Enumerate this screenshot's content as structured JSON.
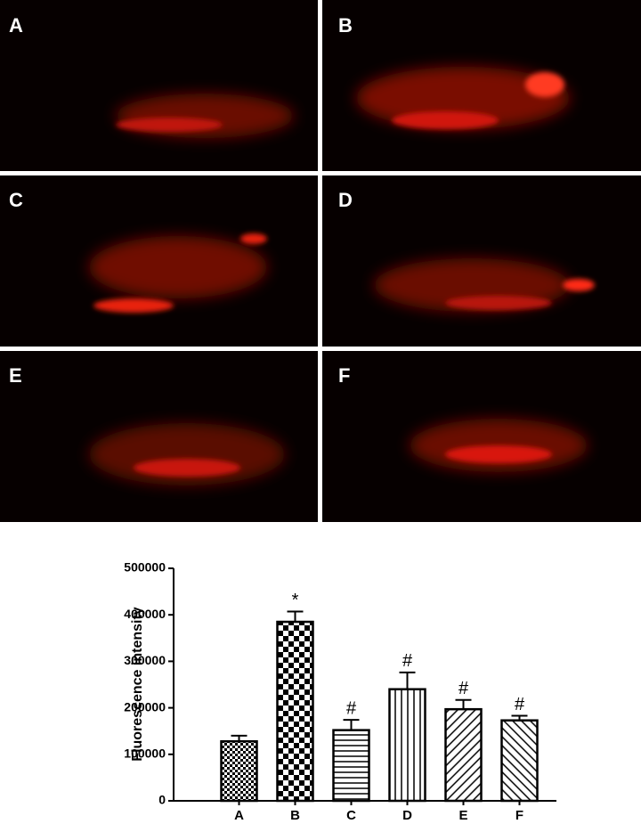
{
  "panels": [
    "A",
    "B",
    "C",
    "D",
    "E",
    "F"
  ],
  "chart_data": {
    "type": "bar",
    "y_label": "Fluorescence intensity",
    "categories": [
      "A",
      "B",
      "C",
      "D",
      "E",
      "F"
    ],
    "values": [
      128000,
      385000,
      152000,
      240000,
      197000,
      173000
    ],
    "errors": [
      12000,
      22000,
      22000,
      36000,
      20000,
      10000
    ],
    "annotations": [
      null,
      "*",
      "#",
      "#",
      "#",
      "#"
    ],
    "color": "#000000",
    "ylim": [
      0,
      500000
    ],
    "yticks": [
      0,
      100000,
      200000,
      300000,
      400000,
      500000
    ]
  }
}
